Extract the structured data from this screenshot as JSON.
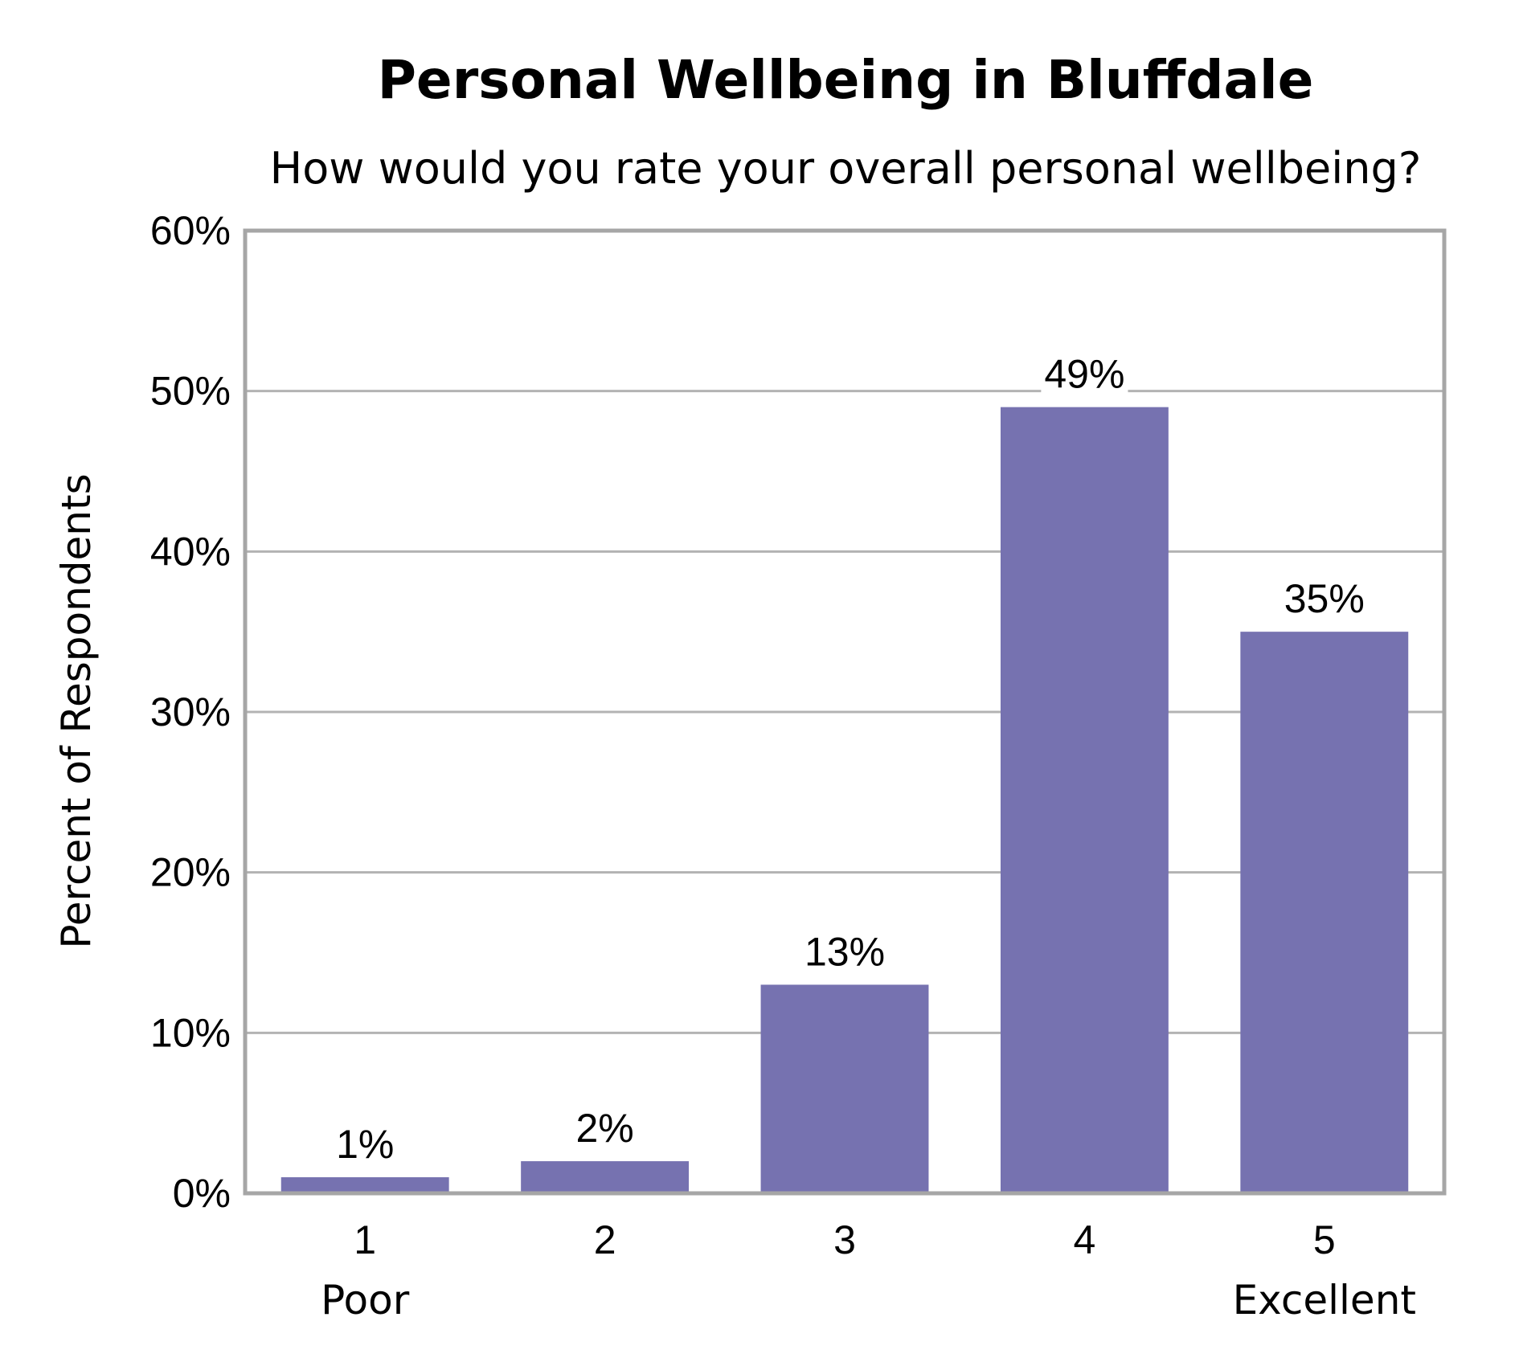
{
  "chart_data": {
    "type": "bar",
    "title": "Personal Wellbeing in Bluffdale",
    "subtitle": "How would you rate your overall personal wellbeing?",
    "xlabel": "",
    "ylabel": "Percent of Respondents",
    "categories": [
      "1",
      "2",
      "3",
      "4",
      "5"
    ],
    "category_sublabels": [
      "Poor",
      "",
      "",
      "",
      "Excellent"
    ],
    "values": [
      1,
      2,
      13,
      49,
      35
    ],
    "data_labels": [
      "1%",
      "2%",
      "13%",
      "49%",
      "35%"
    ],
    "ylim": [
      0,
      60
    ],
    "yticks": [
      0,
      10,
      20,
      30,
      40,
      50,
      60
    ],
    "ytick_labels": [
      "0%",
      "10%",
      "20%",
      "30%",
      "40%",
      "50%",
      "60%"
    ],
    "grid": true,
    "legend": "none",
    "colors": {
      "bar": "#7672b0",
      "grid": "#b3b3b3",
      "frame": "#a6a6a6",
      "text": "#000000"
    }
  }
}
